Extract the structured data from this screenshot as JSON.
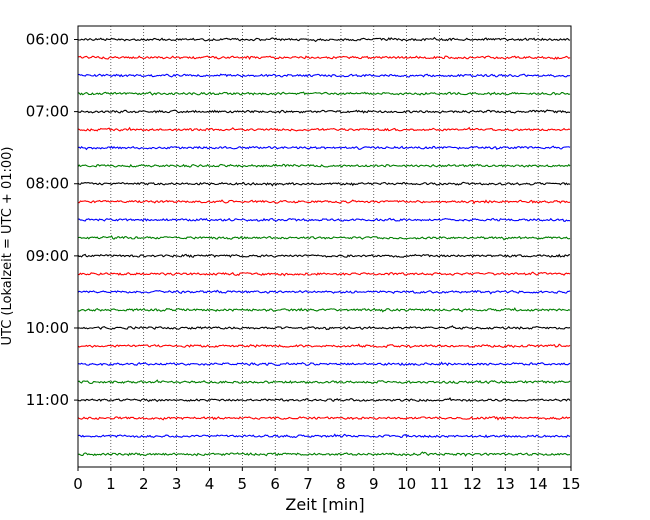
{
  "chart_data": {
    "type": "line",
    "title": "",
    "xlabel": "Zeit  [min]",
    "ylabel": "UTC (Lokalzeit = UTC + 01:00)",
    "xlim": [
      0,
      15
    ],
    "x_ticks": [
      "0",
      "1",
      "2",
      "3",
      "4",
      "5",
      "6",
      "7",
      "8",
      "9",
      "10",
      "11",
      "12",
      "13",
      "14",
      "15"
    ],
    "y_ticks": [
      "06:00",
      "07:00",
      "08:00",
      "09:00",
      "10:00",
      "11:00"
    ],
    "grid": "vertical dotted",
    "trace_start": "06:00",
    "trace_interval_min": 15,
    "trace_colors": [
      "#000000",
      "#ff0000",
      "#0000ff",
      "#007f00"
    ],
    "trace_count": 24
  }
}
